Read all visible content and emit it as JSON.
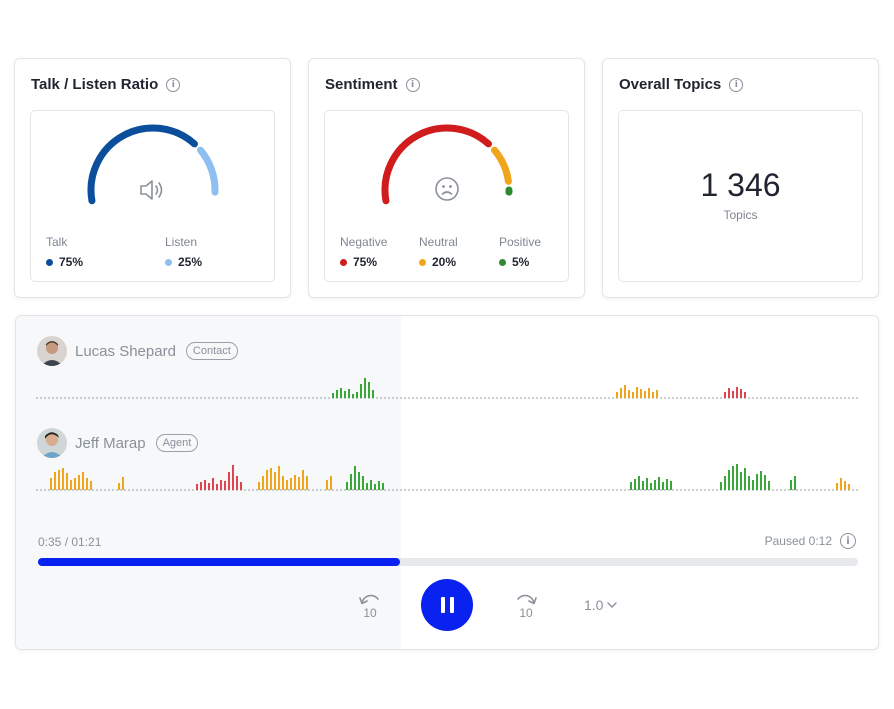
{
  "talk_listen": {
    "title": "Talk / Listen Ratio",
    "talk_label": "Talk",
    "talk_value": "75%",
    "talk_fraction": 0.75,
    "talk_color": "#0b4f9c",
    "listen_label": "Listen",
    "listen_value": "25%",
    "listen_fraction": 0.25,
    "listen_color": "#8dbff0",
    "center_icon": "speaker-icon"
  },
  "sentiment": {
    "title": "Sentiment",
    "negative_label": "Negative",
    "negative_value": "75%",
    "negative_fraction": 0.75,
    "negative_color": "#d01c1c",
    "neutral_label": "Neutral",
    "neutral_value": "20%",
    "neutral_fraction": 0.2,
    "neutral_color": "#f0a51a",
    "positive_label": "Positive",
    "positive_value": "5%",
    "positive_fraction": 0.05,
    "positive_color": "#2f8a2f",
    "center_icon": "frown-face-icon"
  },
  "topics": {
    "title": "Overall Topics",
    "count": "1 346",
    "unit": "Topics"
  },
  "player": {
    "speakers": [
      {
        "name": "Lucas Shepard",
        "role": "Contact"
      },
      {
        "name": "Jeff Marap",
        "role": "Agent"
      }
    ],
    "time_display": "0:35 / 01:21",
    "paused_display": "Paused 0:12",
    "progress_fraction": 0.4415,
    "rewind_label": "10",
    "forward_label": "10",
    "speed_label": "1.0",
    "accent_color": "#0a22f0"
  }
}
